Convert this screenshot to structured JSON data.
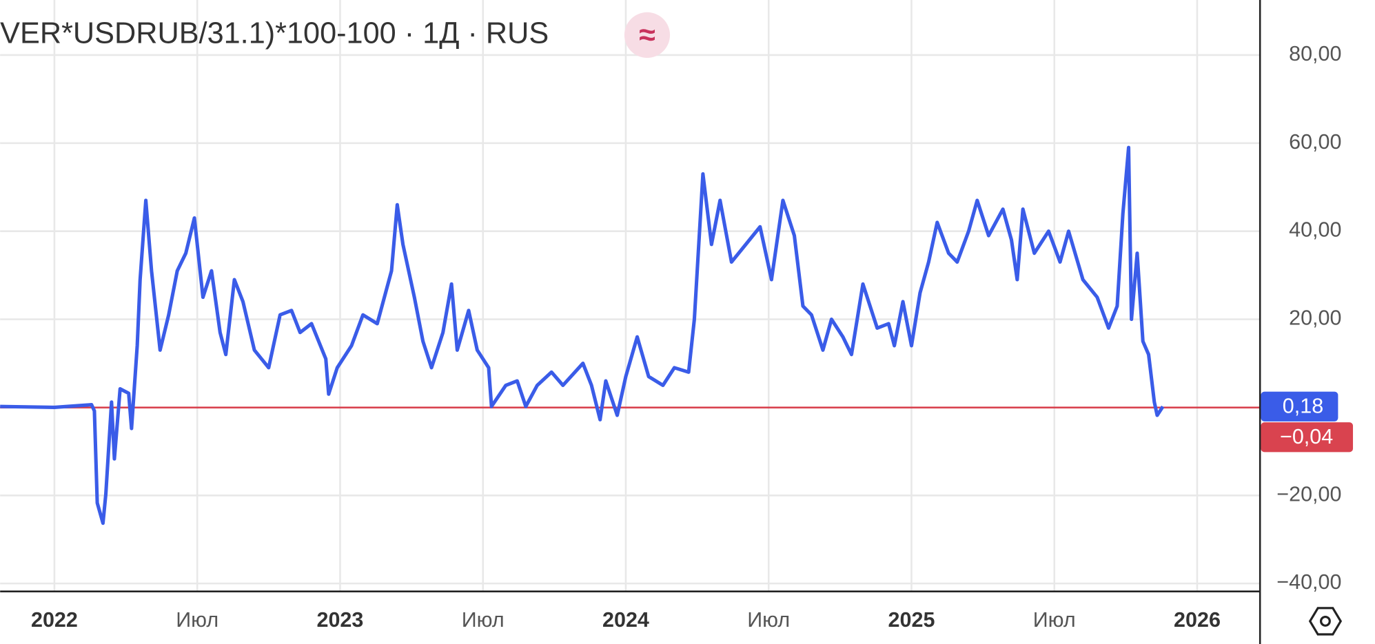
{
  "chart_data": {
    "type": "line",
    "title": "VER*USDRUB/31.1)*100-100 · 1Д · RUS",
    "badge": "≈",
    "color": "#3a5ce8",
    "x": [
      2021.81,
      2022.0,
      2022.13,
      2022.14,
      2022.15,
      2022.17,
      2022.18,
      2022.2,
      2022.21,
      2022.23,
      2022.26,
      2022.27,
      2022.29,
      2022.3,
      2022.32,
      2022.34,
      2022.37,
      2022.4,
      2022.43,
      2022.46,
      2022.49,
      2022.52,
      2022.55,
      2022.58,
      2022.6,
      2022.63,
      2022.66,
      2022.7,
      2022.75,
      2022.79,
      2022.83,
      2022.86,
      2022.9,
      2022.95,
      2022.96,
      2022.99,
      2023.04,
      2023.08,
      2023.13,
      2023.18,
      2023.2,
      2023.22,
      2023.26,
      2023.29,
      2023.32,
      2023.36,
      2023.39,
      2023.41,
      2023.45,
      2023.48,
      2023.52,
      2023.53,
      2023.58,
      2023.62,
      2023.65,
      2023.69,
      2023.74,
      2023.78,
      2023.85,
      2023.88,
      2023.91,
      2023.93,
      2023.97,
      2024.0,
      2024.04,
      2024.08,
      2024.13,
      2024.17,
      2024.22,
      2024.24,
      2024.27,
      2024.3,
      2024.33,
      2024.37,
      2024.42,
      2024.47,
      2024.51,
      2024.55,
      2024.59,
      2024.62,
      2024.65,
      2024.69,
      2024.72,
      2024.76,
      2024.79,
      2024.83,
      2024.88,
      2024.92,
      2024.94,
      2024.97,
      2025.0,
      2025.03,
      2025.06,
      2025.09,
      2025.13,
      2025.16,
      2025.2,
      2025.23,
      2025.27,
      2025.32,
      2025.35,
      2025.37,
      2025.39,
      2025.43,
      2025.48,
      2025.52,
      2025.55,
      2025.6,
      2025.65,
      2025.69,
      2025.72,
      2025.74,
      2025.76,
      2025.77,
      2025.79,
      2025.81,
      2025.83,
      2025.85,
      2025.86,
      2025.88
    ],
    "values": [
      0.2,
      0,
      0.6,
      -0.8,
      -21.7,
      -26.3,
      -19.7,
      1.2,
      -11.7,
      4.2,
      3.2,
      -4.8,
      14.1,
      29,
      47,
      31,
      13,
      21,
      31,
      35,
      43,
      25,
      31,
      17,
      12,
      29,
      24,
      13,
      9,
      21,
      22,
      17,
      19,
      11,
      3,
      9,
      14,
      21,
      19,
      31,
      46,
      37,
      25,
      15,
      9,
      17,
      28,
      13,
      22,
      13,
      9,
      0.2,
      5,
      6,
      0.2,
      5,
      8,
      5,
      10,
      5,
      -2.8,
      6,
      -1.8,
      7,
      16,
      7,
      5,
      9,
      8,
      20,
      53,
      37,
      47,
      33,
      37,
      41,
      29,
      47,
      39,
      23,
      21,
      13,
      20,
      16,
      12,
      28,
      18,
      19,
      14,
      24,
      14,
      26,
      33,
      42,
      35,
      33,
      40,
      47,
      39,
      45,
      38,
      29,
      45,
      35,
      40,
      33,
      40,
      29,
      25,
      18,
      23,
      44,
      59,
      20,
      35,
      15,
      12,
      1.2,
      -1.8,
      0.18
    ],
    "xlim": [
      2021.81,
      2026.22
    ],
    "ylim": [
      -41.8,
      92.5
    ],
    "xticks": [
      2022,
      {
        "value": 2022.5,
        "label": "Июл"
      },
      2023,
      {
        "value": 2023.5,
        "label": "Июл"
      },
      2024,
      {
        "value": 2024.5,
        "label": "Июл"
      },
      2025,
      {
        "value": 2025.5,
        "label": "Июл"
      },
      2026
    ],
    "yticks": [
      {
        "value": -40,
        "label": "−40,00"
      },
      {
        "value": -20,
        "label": "−20,00"
      },
      {
        "value": 20,
        "label": "20,00"
      },
      {
        "value": 40,
        "label": "40,00"
      },
      {
        "value": 60,
        "label": "60,00"
      },
      {
        "value": 80,
        "label": "80,00"
      }
    ],
    "last_value": {
      "value": 0.18,
      "label": "0,18"
    },
    "reference_value": {
      "value": -0.04,
      "label": "−0,04"
    },
    "grid": true
  }
}
